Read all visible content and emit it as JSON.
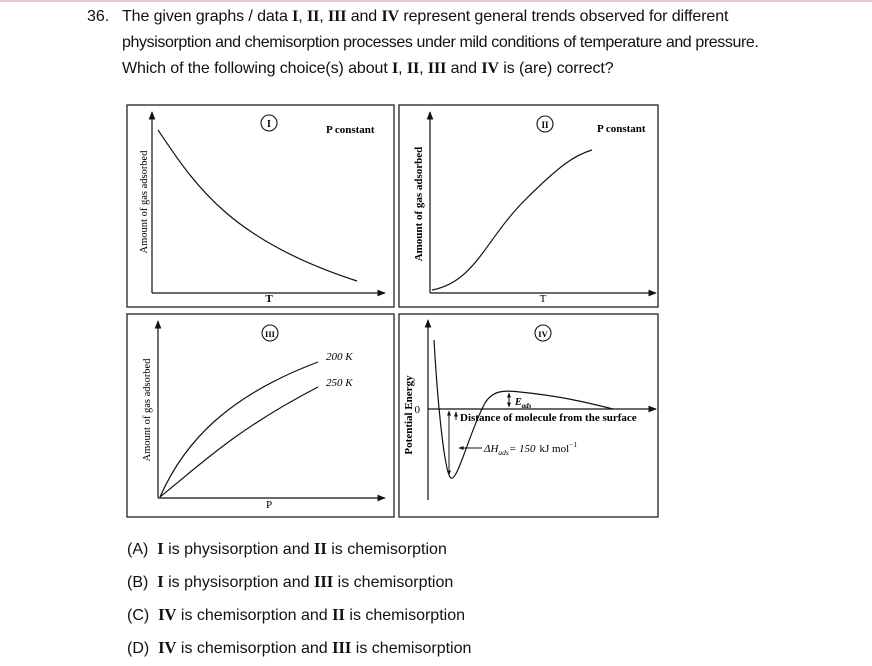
{
  "question": {
    "number": "36.",
    "line1": {
      "pre": "The given graphs / data ",
      "r1": "I",
      "s1": ", ",
      "r2": "II",
      "s2": ", ",
      "r3": "III",
      "s3": " and ",
      "r4": "IV",
      "post": " represent general trends  observed for different"
    },
    "line2": "physisorption and chemisorption processes under mild conditions of temperature and pressure.",
    "line3": {
      "pre": "Which of the following choice(s) about ",
      "r1": "I",
      "s1": ", ",
      "r2": "II",
      "s2": ", ",
      "r3": "III",
      "s3": " and ",
      "r4": "IV",
      "post": " is (are) correct?"
    }
  },
  "graphs": {
    "g1": {
      "marker": "I",
      "note": "P constant",
      "ylabel": "Amount of gas adsorbed",
      "xlabel": "T"
    },
    "g2": {
      "marker": "II",
      "note": "P constant",
      "ylabel": "Amount of gas adsorbed",
      "xlabel": "T"
    },
    "g3": {
      "marker": "III",
      "ylabel": "Amount of gas adsorbed",
      "xlabel": "P",
      "curve_upper": "200 K",
      "curve_lower": "250 K"
    },
    "g4": {
      "marker": "IV",
      "ylabel": "Potential Energy",
      "zero": "0",
      "xlabel": "Distance of molecule from the surface",
      "ea_main": "E",
      "ea_sub": "ads",
      "dh_pre": "ΔH",
      "dh_sub": "ads",
      "dh_eq": "= 150",
      "dh_unit": "kJ mol",
      "dh_exp": "−1"
    }
  },
  "options": [
    {
      "label": "(A)",
      "a": "I",
      "mid": " is physisorption and ",
      "b": "II",
      "end": " is chemisorption"
    },
    {
      "label": "(B)",
      "a": "I",
      "mid": " is physisorption and ",
      "b": "III",
      "end": " is chemisorption"
    },
    {
      "label": "(C)",
      "a": "IV",
      "mid": " is chemisorption and ",
      "b": "II",
      "end": " is chemisorption"
    },
    {
      "label": "(D)",
      "a": "IV",
      "mid": " is chemisorption and ",
      "b": "III",
      "end": " is chemisorption"
    }
  ]
}
